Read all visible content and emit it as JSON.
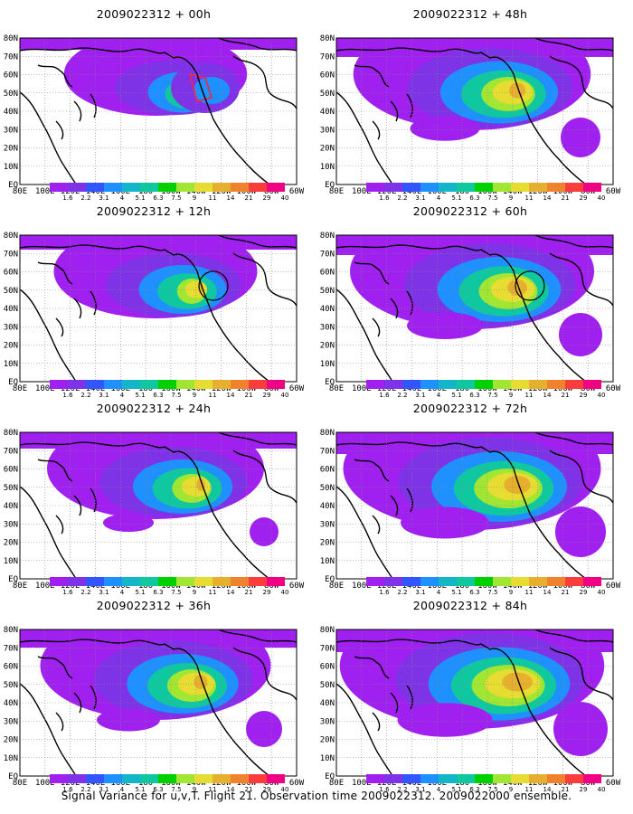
{
  "panels": [
    {
      "title": "2009022312 + 00h"
    },
    {
      "title": "2009022312 + 48h"
    },
    {
      "title": "2009022312 + 12h"
    },
    {
      "title": "2009022312 + 60h"
    },
    {
      "title": "2009022312 + 24h"
    },
    {
      "title": "2009022312 + 72h"
    },
    {
      "title": "2009022312 + 36h"
    },
    {
      "title": "2009022312 + 84h"
    }
  ],
  "map": {
    "lon_labels": [
      "80E",
      "100E",
      "120E",
      "140E",
      "160E",
      "180",
      "160W",
      "140W",
      "120W",
      "100W",
      "80W",
      "60W"
    ],
    "lat_labels": [
      "80N",
      "70N",
      "60N",
      "50N",
      "40N",
      "30N",
      "20N",
      "10N",
      "EQ"
    ]
  },
  "colorbar": {
    "labels": [
      "1.6",
      "2.2",
      "3.1",
      "4",
      "5.1",
      "6.3",
      "7.5",
      "9",
      "11",
      "14",
      "21",
      "29",
      "40"
    ],
    "colors": [
      "#a020f0",
      "#7f33e6",
      "#3355ff",
      "#1e90ff",
      "#12b6c8",
      "#10c8a0",
      "#00d000",
      "#a0e632",
      "#e6dc32",
      "#e6af2d",
      "#f0822d",
      "#fa3c3c",
      "#f00082"
    ]
  },
  "footer": "Signal Variance for u,v,T. Flight 21. Observation time 2009022312. 2009022000 ensemble."
}
